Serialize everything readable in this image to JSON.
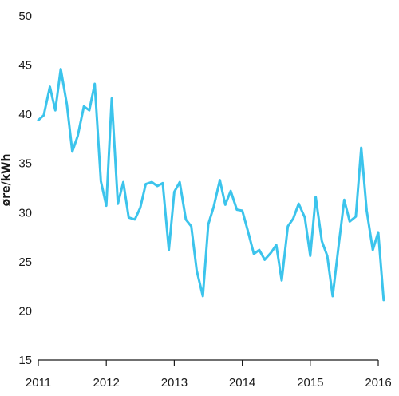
{
  "chart_data": {
    "type": "line",
    "title": "",
    "xlabel": "",
    "ylabel": "øre/kWh",
    "xlim": [
      2011,
      2016
    ],
    "ylim": [
      15,
      50
    ],
    "y_ticks": [
      15,
      20,
      25,
      30,
      35,
      40,
      45,
      50
    ],
    "x_ticks": [
      2011,
      2012,
      2013,
      2014,
      2015,
      2016
    ],
    "x_tick_labels": [
      "2011",
      "2012",
      "2013",
      "2014",
      "2015",
      "2016"
    ],
    "grid": false,
    "legend": "none",
    "series_color": "#3cc4ec",
    "series": [
      {
        "x": [
          2011.0,
          2011.08,
          2011.17,
          2011.25,
          2011.33,
          2011.42,
          2011.5,
          2011.58,
          2011.67,
          2011.75,
          2011.83,
          2011.92,
          2012.0,
          2012.08,
          2012.17,
          2012.25,
          2012.33,
          2012.42,
          2012.5,
          2012.58,
          2012.67,
          2012.75,
          2012.83,
          2012.92,
          2013.0,
          2013.08,
          2013.17,
          2013.25,
          2013.33,
          2013.42,
          2013.5,
          2013.58,
          2013.67,
          2013.75,
          2013.83,
          2013.92,
          2014.0,
          2014.08,
          2014.17,
          2014.25,
          2014.33,
          2014.42,
          2014.5,
          2014.58,
          2014.67,
          2014.75,
          2014.83,
          2014.92,
          2015.0,
          2015.08,
          2015.17,
          2015.25,
          2015.33,
          2015.42,
          2015.5,
          2015.58,
          2015.67,
          2015.75,
          2015.83,
          2015.92,
          2016.0
        ],
        "values": [
          39.4,
          39.9,
          42.8,
          40.4,
          44.6,
          41.0,
          36.2,
          37.8,
          40.8,
          40.4,
          43.1,
          33.2,
          30.7,
          41.6,
          30.9,
          33.1,
          29.5,
          29.3,
          30.5,
          32.9,
          33.1,
          32.7,
          33.0,
          26.2,
          32.1,
          33.1,
          29.3,
          28.6,
          24.1,
          21.5,
          28.8,
          30.6,
          33.3,
          30.8,
          32.2,
          30.3,
          30.2,
          28.2,
          25.8,
          26.2,
          25.2,
          25.9,
          26.7,
          23.1,
          28.6,
          29.4,
          30.9,
          29.5,
          25.6,
          31.6,
          27.1,
          25.6,
          21.5,
          26.8,
          31.3,
          29.1,
          29.6,
          36.6,
          30.2,
          26.2,
          28.0
        ]
      },
      {
        "x": [
          2016.0,
          2016.08
        ],
        "values": [
          28.0,
          21.1
        ]
      }
    ]
  }
}
